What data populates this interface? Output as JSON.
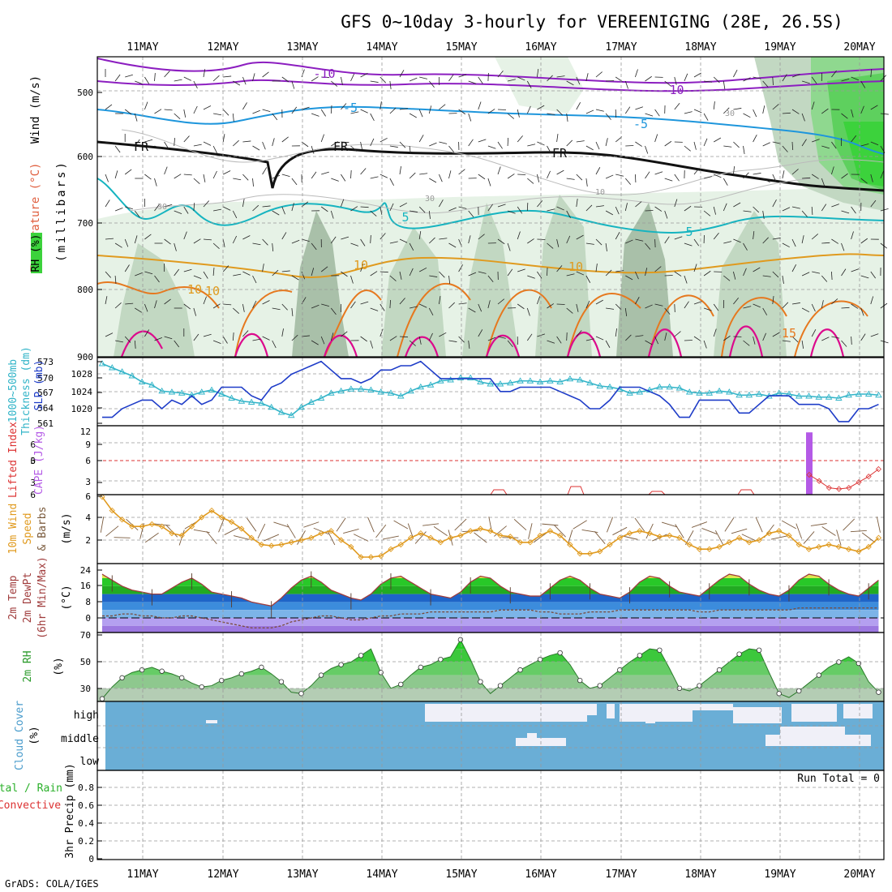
{
  "title": "GFS 0~10day 3-hourly for VEREENIGING (28E, 26.5S)",
  "footer": "GrADS: COLA/IGES",
  "dates": [
    "11MAY",
    "12MAY",
    "13MAY",
    "14MAY",
    "15MAY",
    "16MAY",
    "17MAY",
    "18MAY",
    "19MAY",
    "20MAY"
  ],
  "colors": {
    "rh_light": "#e6f2e6",
    "rh_mid": "#c2d8c2",
    "rh_dark": "#a9c0a9",
    "rh_green": "#3cd23c",
    "t_purple": "#8c1ec0",
    "t_blue": "#1e96dc",
    "t_cyan": "#16b4c0",
    "t_orange": "#e09a1e",
    "t_darkorange": "#e6781e",
    "t_magenta": "#dc0a8c",
    "freezing": "#111111",
    "slp": "#1e3cc8",
    "thickness": "#32b4c8",
    "cape": "#b45ae6",
    "lifted": "#dc3232",
    "wind10m": "#e09a1e",
    "barb": "#7a5a3c",
    "cloud": "#6aaed6",
    "cloud_clear": "#f0f0f8",
    "rh2m": "#3cc83c",
    "rh2m_back": "#b4cdb4"
  },
  "panels": {
    "upper": {
      "ylabel_wind": "Wind (m/s)",
      "ylabel_temp": "Temperature (°C)",
      "ylabel_rh": "RH (%)",
      "ylabel_mb": "(millibars)",
      "ticks": [
        "500",
        "600",
        "700",
        "800",
        "900"
      ],
      "contour_labels": [
        "-10",
        "-10",
        "-5",
        "-5",
        "FR",
        "FR",
        "FR",
        "5",
        "5",
        "10",
        "10",
        "15",
        "10",
        "10",
        "10",
        "30",
        "30",
        "30"
      ]
    },
    "slp": {
      "ylabel1": "1000~500mb",
      "ylabel2": "Thickness (dm)",
      "ylabel3": "SLP (mb)",
      "ticks_left": [
        "573",
        "570",
        "567",
        "564",
        "561"
      ],
      "ticks_right": [
        "1028",
        "1024",
        "1020"
      ]
    },
    "cape": {
      "ylabel1": "Lifted Index",
      "ylabel2": "CAPE (J/kg)",
      "ticks_left": [
        "6",
        "3",
        "0",
        "3",
        "6"
      ],
      "ticks_right": [
        "12",
        "9",
        "6",
        "3"
      ]
    },
    "wind": {
      "ylabel1": "10m Wind",
      "ylabel2": "Speed",
      "ylabel3": "& Barbs",
      "ylabel4": "(m/s)",
      "ticks": [
        "6",
        "4",
        "2"
      ]
    },
    "temp": {
      "ylabel1": "2m Temp",
      "ylabel2": "2m DewPt",
      "ylabel3": "(6hr Min/Max)",
      "ylabel4": "(°C)",
      "ticks": [
        "24",
        "16",
        "8",
        "0"
      ]
    },
    "rh2m": {
      "ylabel1": "2m RH",
      "ylabel2": "(%)",
      "ticks": [
        "70",
        "50",
        "30"
      ]
    },
    "cloud": {
      "ylabel1": "Cloud Cover",
      "ylabel2": "(%)",
      "levels": [
        "high",
        "middle",
        "low"
      ]
    },
    "precip": {
      "ylabel1": "Total / Rain",
      "ylabel2": "Convective",
      "ylabel3": "3hr Precip (mm)",
      "run_total": "Run Total = 0",
      "ticks": [
        "0.8",
        "0.6",
        "0.4",
        "0.2",
        "0"
      ]
    }
  },
  "chart_data": [
    {
      "type": "line",
      "name": "SLP (mb)",
      "x_start": "10MAY 12Z",
      "x_step_hours": 3,
      "values": [
        1018,
        1018,
        1020,
        1021,
        1022,
        1022,
        1020,
        1022,
        1021,
        1023,
        1021,
        1022,
        1025,
        1025,
        1025,
        1023,
        1022,
        1025,
        1026,
        1028,
        1029,
        1030,
        1031,
        1029,
        1027,
        1027,
        1026,
        1027,
        1029,
        1029,
        1030,
        1030,
        1031,
        1029,
        1027,
        1027,
        1027,
        1027,
        1027,
        1027,
        1024,
        1024,
        1025,
        1025,
        1025,
        1025,
        1024,
        1023,
        1022,
        1020,
        1020,
        1022,
        1025,
        1025,
        1025,
        1024,
        1023,
        1021,
        1018,
        1018,
        1022,
        1022,
        1022,
        1022,
        1019,
        1019,
        1021,
        1023,
        1023,
        1023,
        1021,
        1021,
        1021,
        1020,
        1017,
        1017,
        1020,
        1020,
        1021,
        1020,
        1018,
        1018,
        1020,
        1021,
        1021,
        1022
      ]
    },
    {
      "type": "line",
      "name": "1000~500mb Thickness (dm)",
      "x_start": "10MAY 12Z",
      "x_step_hours": 3,
      "values": [
        572.6,
        571.8,
        571,
        570.2,
        569,
        568.4,
        567.2,
        567,
        566.8,
        566.4,
        567,
        567.4,
        566.6,
        565.8,
        565.2,
        565,
        564.8,
        564,
        563,
        562.4,
        564,
        565,
        565.8,
        566.8,
        567.2,
        567.6,
        567.6,
        567.4,
        567,
        566.8,
        566.2,
        567.2,
        568,
        568.4,
        569.2,
        569.4,
        569.8,
        569.8,
        569,
        568.6,
        568.6,
        568.8,
        569.2,
        569.2,
        569,
        569.2,
        569,
        569.6,
        569.4,
        568.8,
        568.2,
        568,
        567.6,
        566.8,
        567,
        567.4,
        568,
        568,
        567.8,
        567,
        566.8,
        566.8,
        567.2,
        567,
        566.4,
        566.4,
        566.6,
        566.2,
        566.8,
        566.6,
        566.2,
        566.2,
        566,
        566,
        565.8,
        566.4,
        566.6,
        566.6,
        566.4,
        566,
        565.8,
        565.6,
        565,
        564.6,
        564.4,
        564.6
      ]
    },
    {
      "type": "line",
      "name": "10m Wind Speed (m/s)",
      "x_start": "10MAY 12Z",
      "x_step_hours": 3,
      "values": [
        5.8,
        4.6,
        3.8,
        3.2,
        3.2,
        3.4,
        3.2,
        2.6,
        2.4,
        3.2,
        4,
        4.6,
        4,
        3.6,
        3,
        2.2,
        1.6,
        1.5,
        1.6,
        1.8,
        2,
        2.2,
        2.6,
        2.8,
        2,
        1.4,
        0.5,
        0.5,
        0.6,
        1.2,
        1.6,
        2.2,
        2.6,
        2.2,
        1.8,
        2.2,
        2.4,
        2.8,
        3,
        2.8,
        2.4,
        2.3,
        1.8,
        1.8,
        2.4,
        2.8,
        2.4,
        1.6,
        0.8,
        0.8,
        1,
        1.6,
        2.2,
        2.6,
        2.8,
        2.6,
        2.3,
        2.4,
        2.2,
        1.6,
        1.2,
        1.2,
        1.4,
        1.8,
        2.2,
        1.8,
        2,
        2.6,
        2.8,
        2.4,
        1.6,
        1.2,
        1.4,
        1.6,
        1.4,
        1.2,
        1,
        1.4,
        2.2,
        3,
        2.6,
        2.2,
        1.6,
        1.4,
        1.2,
        1.2,
        1.3,
        1.3,
        1.5,
        3.6,
        4.2,
        2.6,
        1.6,
        0.8,
        1.5,
        2.4,
        2.8,
        3.6,
        4
      ]
    },
    {
      "type": "area",
      "name": "2m Temp (°C)",
      "x_start": "10MAY 12Z",
      "x_step_hours": 3,
      "values": [
        22,
        19,
        16,
        14,
        13,
        12,
        12,
        15,
        18,
        20,
        17,
        13,
        12,
        11,
        10,
        8,
        7,
        6,
        10,
        15,
        19,
        21,
        18,
        14,
        12,
        10,
        9,
        12,
        17,
        20,
        21,
        18,
        15,
        12,
        11,
        10,
        13,
        18,
        21,
        20,
        16,
        13,
        12,
        11,
        11,
        15,
        19,
        21,
        19,
        15,
        12,
        11,
        10,
        13,
        18,
        21,
        20,
        16,
        13,
        12,
        11,
        15,
        19,
        22,
        21,
        17,
        14,
        12,
        11,
        14,
        19,
        22,
        21,
        17,
        14,
        12,
        11,
        15,
        19,
        21,
        21,
        17,
        14,
        12,
        11,
        14,
        19,
        22,
        21,
        17,
        14,
        13,
        12,
        12,
        13,
        14
      ]
    },
    {
      "type": "line",
      "name": "2m DewPt (°C)",
      "x_start": "10MAY 12Z",
      "x_step_hours": 3,
      "values": [
        1,
        1,
        2,
        2,
        1,
        1,
        0,
        0,
        1,
        1,
        0,
        -1,
        -2,
        -3,
        -4,
        -5,
        -5,
        -5,
        -4,
        -2,
        -1,
        0,
        1,
        1,
        0,
        -1,
        -1,
        0,
        1,
        1,
        2,
        2,
        2,
        3,
        3,
        3,
        3,
        3,
        3,
        3,
        4,
        4,
        4,
        4,
        3,
        3,
        2,
        2,
        2,
        3,
        3,
        3,
        4,
        4,
        4,
        4,
        4,
        4,
        4,
        4,
        3,
        3,
        4,
        4,
        4,
        4,
        4,
        4,
        4,
        4,
        5,
        5,
        5,
        5,
        5,
        5,
        5,
        5,
        5,
        5,
        5,
        6,
        6,
        6,
        6,
        6,
        6,
        6,
        6,
        6,
        6,
        6
      ]
    },
    {
      "type": "area",
      "name": "2m RH (%)",
      "x_start": "10MAY 12Z",
      "x_step_hours": 3,
      "values": [
        22,
        31,
        38,
        42,
        44,
        46,
        43,
        41,
        38,
        34,
        31,
        32,
        36,
        38,
        41,
        43,
        46,
        41,
        35,
        27,
        26,
        32,
        40,
        45,
        48,
        50,
        55,
        60,
        42,
        30,
        33,
        40,
        46,
        48,
        52,
        54,
        67,
        52,
        35,
        26,
        32,
        38,
        44,
        48,
        52,
        55,
        57,
        48,
        36,
        30,
        32,
        38,
        44,
        50,
        55,
        60,
        59,
        45,
        30,
        28,
        32,
        38,
        44,
        50,
        56,
        60,
        59,
        42,
        26,
        23,
        28,
        34,
        40,
        46,
        50,
        54,
        49,
        35,
        27,
        26,
        32,
        38,
        44,
        48,
        51,
        53,
        54,
        40,
        30,
        32,
        38,
        44,
        50,
        54,
        57,
        58,
        55
      ]
    },
    {
      "type": "bar",
      "name": "CAPE (J/kg)",
      "x": [
        "19MAY 09Z"
      ],
      "values": [
        12
      ]
    },
    {
      "type": "line",
      "name": "Lifted Index",
      "x_start": "19MAY 09Z",
      "x_step_hours": 3,
      "values": [
        3.5,
        2.4,
        1.2,
        1,
        1.2,
        2.2,
        3.2,
        4.5
      ]
    },
    {
      "type": "table",
      "name": "3hr Precip (mm)",
      "values": [
        0
      ]
    }
  ]
}
